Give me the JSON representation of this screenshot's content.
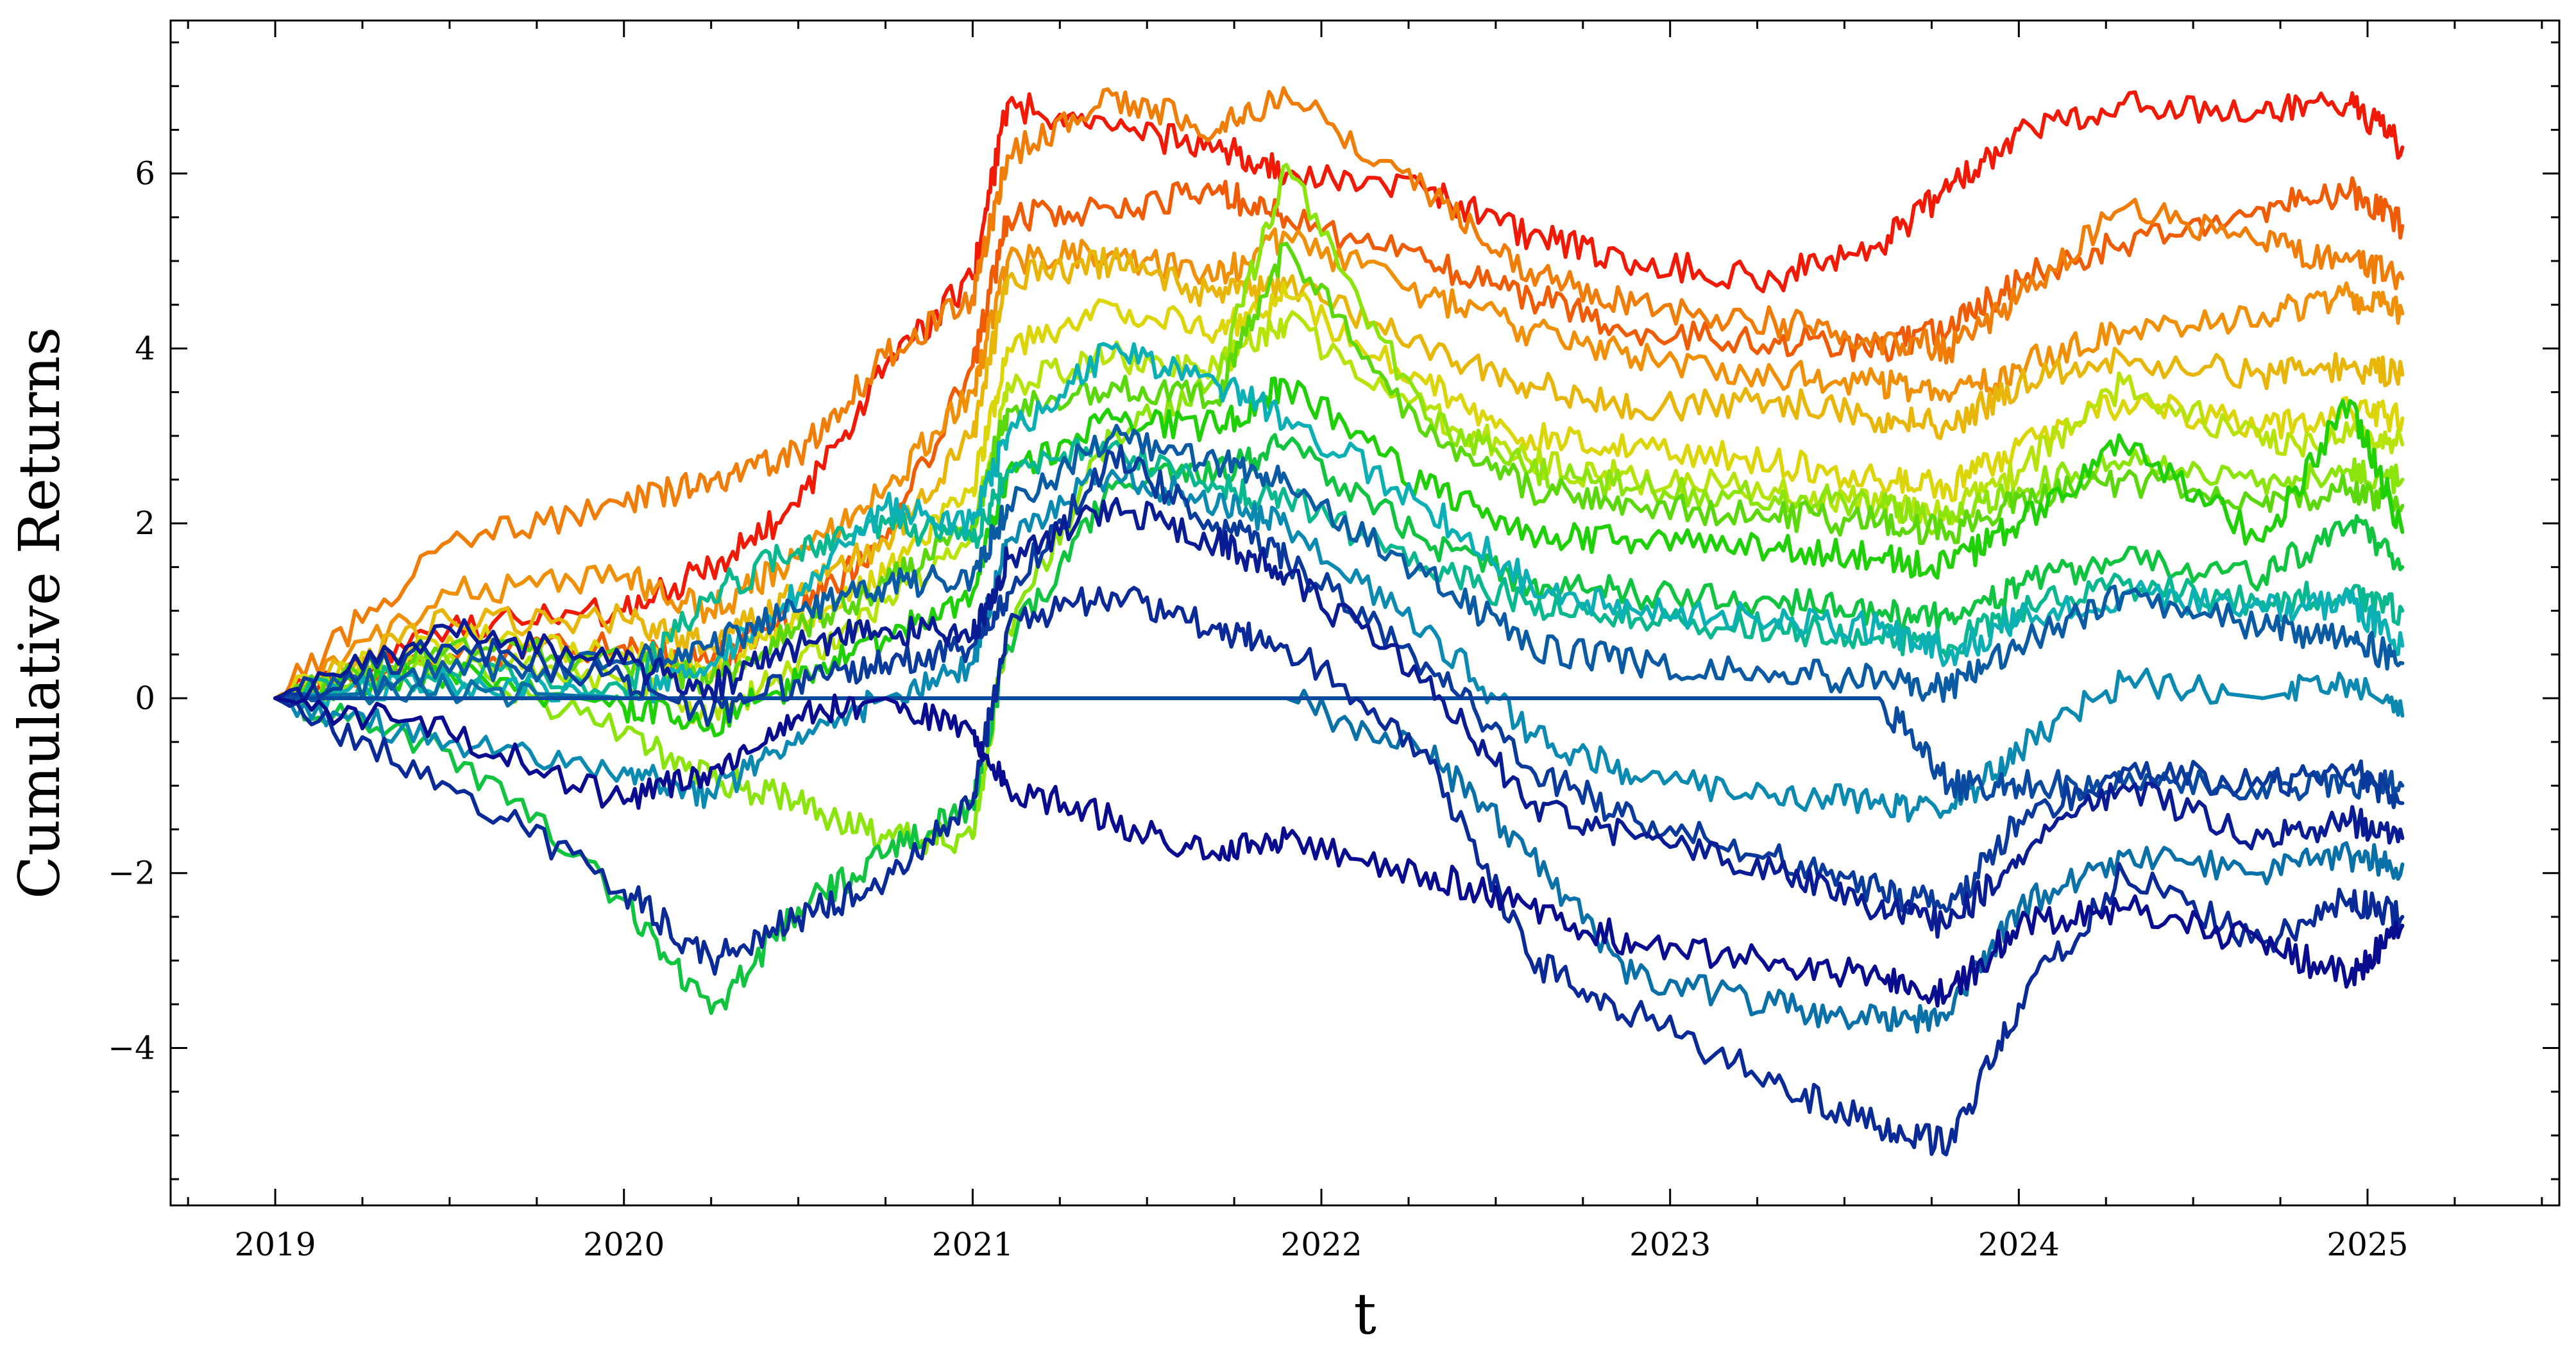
{
  "chart_data": {
    "type": "line",
    "title": "",
    "xlabel": "t",
    "ylabel": "Cumulative Returns",
    "xlim": [
      2018.7,
      2025.55
    ],
    "ylim": [
      -5.8,
      7.75
    ],
    "xticks": [
      2019,
      2020,
      2021,
      2022,
      2023,
      2024,
      2025
    ],
    "xtick_labels": [
      "2019",
      "2020",
      "2021",
      "2022",
      "2023",
      "2024",
      "2025"
    ],
    "yticks": [
      -4,
      -2,
      0,
      2,
      4,
      6
    ],
    "ytick_labels": [
      "−4",
      "−2",
      "0",
      "2",
      "4",
      "6"
    ],
    "grid": false,
    "legend": "none",
    "colormap": "spectral red (highest final value) to dark blue (lowest final value)",
    "x": [
      2019.0,
      2019.5,
      2020.0,
      2020.25,
      2020.5,
      2020.75,
      2021.0,
      2021.1,
      2021.4,
      2021.7,
      2021.9,
      2022.3,
      2022.6,
      2022.9,
      2023.3,
      2023.6,
      2023.8,
      2024.0,
      2024.3,
      2024.7,
      2024.95,
      2025.1
    ],
    "series": [
      {
        "color": "#f01a06",
        "values": [
          0.0,
          0.8,
          1.0,
          1.5,
          2.2,
          3.8,
          4.8,
          6.8,
          6.5,
          6.3,
          6.0,
          5.8,
          5.3,
          5.0,
          4.8,
          5.2,
          5.8,
          6.5,
          6.8,
          6.7,
          6.8,
          6.3
        ]
      },
      {
        "color": "#f05c06",
        "values": [
          0.0,
          0.5,
          0.6,
          0.4,
          1.0,
          1.8,
          3.8,
          5.5,
          5.6,
          5.8,
          5.5,
          5.0,
          4.6,
          4.2,
          4.1,
          4.0,
          4.2,
          4.8,
          5.2,
          5.6,
          5.8,
          5.4
        ]
      },
      {
        "color": "#ef7d08",
        "values": [
          0.0,
          1.8,
          2.2,
          2.5,
          2.8,
          3.9,
          4.6,
          6.2,
          6.9,
          6.5,
          6.9,
          5.8,
          4.9,
          4.5,
          4.3,
          4.1,
          4.0,
          4.6,
          5.6,
          5.2,
          5.0,
          4.8
        ]
      },
      {
        "color": "#f09008",
        "values": [
          0.0,
          1.2,
          1.4,
          1.0,
          1.6,
          2.4,
          3.5,
          5.0,
          5.1,
          4.8,
          5.3,
          4.6,
          4.2,
          3.9,
          3.7,
          3.6,
          3.4,
          3.8,
          4.2,
          4.4,
          4.6,
          4.4
        ]
      },
      {
        "color": "#e8b608",
        "values": [
          0.0,
          0.9,
          0.9,
          0.6,
          1.2,
          1.8,
          3.0,
          4.8,
          5.0,
          4.6,
          4.7,
          4.0,
          3.6,
          3.3,
          3.4,
          3.2,
          3.1,
          3.6,
          3.9,
          3.7,
          3.8,
          3.7
        ]
      },
      {
        "color": "#dcd608",
        "values": [
          0.0,
          0.7,
          0.5,
          0.3,
          0.9,
          1.4,
          2.4,
          4.0,
          4.5,
          4.2,
          4.6,
          3.6,
          3.0,
          2.9,
          2.7,
          2.5,
          2.4,
          2.9,
          3.4,
          3.1,
          3.3,
          3.2
        ]
      },
      {
        "color": "#b6e40a",
        "values": [
          0.0,
          0.5,
          0.2,
          -0.2,
          0.4,
          1.1,
          1.9,
          3.6,
          3.9,
          3.8,
          4.3,
          3.3,
          2.7,
          2.5,
          2.4,
          2.2,
          2.1,
          2.6,
          3.6,
          2.9,
          3.0,
          2.9
        ]
      },
      {
        "color": "#8be40c",
        "values": [
          0.0,
          0.4,
          -0.4,
          -0.9,
          -1.2,
          -1.6,
          -1.6,
          0.8,
          3.0,
          3.6,
          6.1,
          3.2,
          2.6,
          2.4,
          2.3,
          2.2,
          2.0,
          2.4,
          2.7,
          2.5,
          2.6,
          2.5
        ]
      },
      {
        "color": "#5ad80c",
        "values": [
          0.0,
          0.6,
          0.4,
          0.2,
          0.8,
          1.3,
          2.0,
          3.3,
          3.6,
          3.4,
          5.2,
          3.0,
          2.4,
          2.2,
          2.1,
          2.0,
          1.9,
          2.3,
          2.5,
          2.2,
          2.4,
          2.2
        ]
      },
      {
        "color": "#20d006",
        "values": [
          0.0,
          0.3,
          -0.1,
          -0.3,
          0.2,
          0.7,
          1.2,
          2.6,
          3.2,
          3.1,
          3.6,
          2.4,
          1.9,
          1.8,
          1.7,
          1.6,
          1.5,
          2.0,
          2.9,
          1.8,
          3.4,
          1.9
        ]
      },
      {
        "color": "#10c440",
        "values": [
          0.0,
          -0.6,
          -2.3,
          -3.6,
          -2.4,
          -1.8,
          -1.2,
          0.6,
          2.4,
          2.6,
          2.9,
          1.8,
          1.3,
          1.2,
          1.1,
          1.0,
          0.9,
          1.3,
          1.6,
          1.4,
          2.0,
          1.5
        ]
      },
      {
        "color": "#0ab890",
        "values": [
          0.0,
          0.3,
          0.1,
          1.2,
          1.7,
          2.0,
          1.8,
          2.6,
          2.9,
          2.4,
          2.3,
          1.5,
          1.1,
          0.9,
          0.8,
          0.7,
          0.6,
          1.0,
          1.3,
          1.1,
          1.2,
          1.0
        ]
      },
      {
        "color": "#0ab0b4",
        "values": [
          0.0,
          0.2,
          0.0,
          0.4,
          1.2,
          2.2,
          2.0,
          3.0,
          4.0,
          3.6,
          3.2,
          2.2,
          1.3,
          1.0,
          0.9,
          0.8,
          0.5,
          0.9,
          1.2,
          1.0,
          1.1,
          0.6
        ]
      },
      {
        "color": "#0a8ab0",
        "values": [
          0.0,
          -0.5,
          -0.8,
          -1.1,
          -0.4,
          0.0,
          0.4,
          1.8,
          2.6,
          2.2,
          2.0,
          0.8,
          -0.4,
          -0.9,
          -1.1,
          -1.2,
          -1.3,
          -0.6,
          0.2,
          0.0,
          0.2,
          -0.2
        ]
      },
      {
        "color": "#0a70a8",
        "values": [
          0.0,
          0.1,
          0.0,
          0.0,
          0.0,
          0.0,
          0.0,
          0.0,
          0.0,
          0.0,
          0.0,
          -0.6,
          -1.8,
          -3.2,
          -3.5,
          -3.7,
          -3.6,
          -2.4,
          -1.8,
          -2.0,
          -1.8,
          -1.9
        ]
      },
      {
        "color": "#0a5aa4",
        "values": [
          0.0,
          0.3,
          0.4,
          0.6,
          1.0,
          1.3,
          1.4,
          2.2,
          3.0,
          2.7,
          2.5,
          1.4,
          0.6,
          0.4,
          0.3,
          0.2,
          0.1,
          0.6,
          1.2,
          0.8,
          0.7,
          0.4
        ]
      },
      {
        "color": "#0a4aa0",
        "values": [
          0.0,
          0.0,
          0.0,
          0.0,
          0.0,
          0.0,
          0.0,
          0.0,
          0.0,
          0.0,
          0.0,
          0.0,
          0.0,
          0.0,
          0.0,
          0.0,
          -1.0,
          -1.0,
          -1.0,
          -1.0,
          -1.0,
          -1.0
        ]
      },
      {
        "color": "#0a3a9c",
        "values": [
          0.0,
          0.6,
          0.2,
          -0.2,
          0.2,
          0.4,
          0.6,
          1.2,
          2.8,
          2.0,
          1.6,
          0.4,
          -0.8,
          -1.4,
          -1.8,
          -2.2,
          -2.4,
          -1.4,
          -0.8,
          -1.0,
          -0.8,
          -1.2
        ]
      },
      {
        "color": "#0a2a98",
        "values": [
          0.0,
          -1.0,
          -2.2,
          -3.0,
          -2.5,
          -2.1,
          -1.2,
          0.8,
          1.2,
          0.8,
          0.6,
          -0.6,
          -3.0,
          -3.6,
          -4.4,
          -4.9,
          -5.1,
          -3.5,
          -2.0,
          -2.8,
          -2.3,
          -2.5
        ]
      },
      {
        "color": "#0a1c94",
        "values": [
          0.0,
          0.8,
          0.4,
          0.1,
          0.6,
          0.8,
          0.7,
          1.6,
          2.2,
          1.8,
          1.4,
          0.2,
          -1.2,
          -1.6,
          -2.0,
          -2.4,
          -2.6,
          -1.8,
          -1.0,
          -1.6,
          -1.4,
          -1.6
        ]
      },
      {
        "color": "#0a0c90",
        "values": [
          0.0,
          -0.4,
          -1.2,
          -0.8,
          -0.2,
          0.0,
          -0.4,
          -1.0,
          -1.4,
          -1.8,
          -1.6,
          -2.0,
          -2.4,
          -2.8,
          -3.0,
          -3.2,
          -3.4,
          -2.6,
          -2.4,
          -2.8,
          -3.2,
          -2.6
        ]
      }
    ]
  }
}
